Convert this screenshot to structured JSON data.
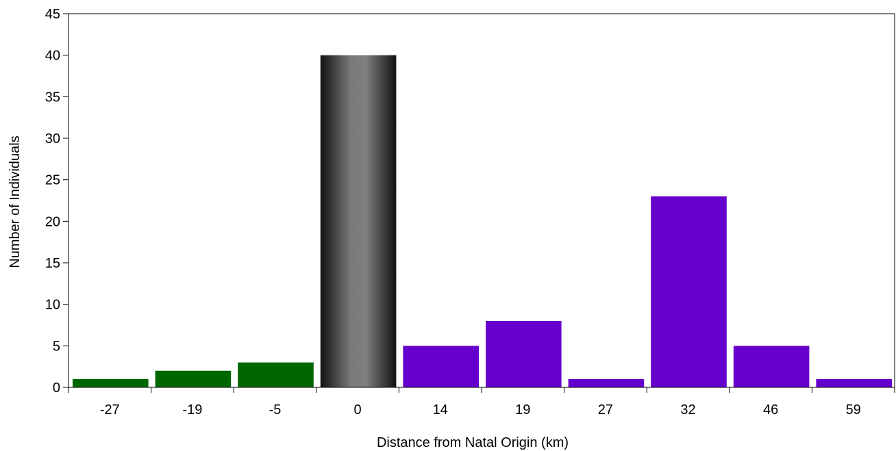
{
  "chart_data": {
    "type": "bar",
    "title": "",
    "xlabel": "Distance from Natal Origin (km)",
    "ylabel": "Number of Individuals",
    "categories": [
      "-27",
      "-19",
      "-5",
      "0",
      "14",
      "19",
      "27",
      "32",
      "46",
      "59"
    ],
    "values": [
      1,
      2,
      3,
      40,
      5,
      8,
      1,
      23,
      5,
      1
    ],
    "ylim": [
      0,
      45
    ],
    "yticks": [
      0,
      5,
      10,
      15,
      20,
      25,
      30,
      35,
      40,
      45
    ],
    "grid": false,
    "legend": "none",
    "colors": {
      "negative": "#006600",
      "zero_gradient_start": "#111111",
      "zero_gradient_end": "#7f7f7f",
      "positive": "#6600cc"
    }
  }
}
